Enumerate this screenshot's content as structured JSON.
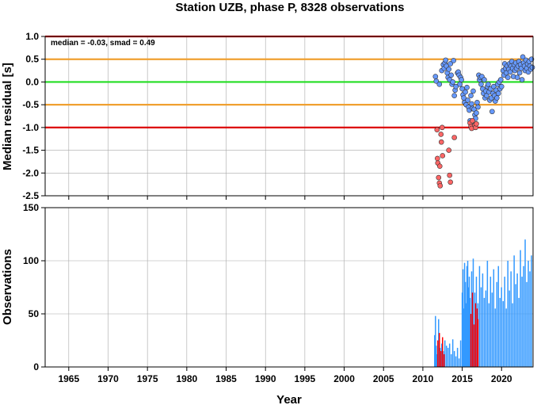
{
  "chart_data": [
    {
      "type": "scatter",
      "title": "Station UZB, phase P, 8328 observations",
      "xlabel": "",
      "ylabel": "Median residual [s]",
      "xlim": [
        1962,
        2024
      ],
      "ylim": [
        -2.5,
        1.0
      ],
      "yticks": [
        "1.0",
        "0.5",
        "0.0",
        "-0.5",
        "-1.0",
        "-1.5",
        "-2.0",
        "-2.5"
      ],
      "grid": true,
      "annotation": "median = -0.03, smad = 0.49",
      "reference_lines": [
        {
          "y": 1.0,
          "color": "#dd0000"
        },
        {
          "y": 0.5,
          "color": "#f0a030"
        },
        {
          "y": 0.0,
          "color": "#22dd22"
        },
        {
          "y": -0.5,
          "color": "#f0a030"
        },
        {
          "y": -1.0,
          "color": "#dd0000"
        }
      ],
      "series": [
        {
          "color": "#6699ff",
          "points": [
            [
              2011.6,
              0.12
            ],
            [
              2011.7,
              0.02
            ],
            [
              2012.1,
              -0.05
            ],
            [
              2012.4,
              0.25
            ],
            [
              2012.6,
              0.38
            ],
            [
              2012.7,
              0.3
            ],
            [
              2012.8,
              0.42
            ],
            [
              2012.9,
              0.48
            ],
            [
              2013.0,
              0.35
            ],
            [
              2013.1,
              0.2
            ],
            [
              2013.2,
              0.1
            ],
            [
              2013.3,
              0.28
            ],
            [
              2013.4,
              0.05
            ],
            [
              2013.5,
              0.4
            ],
            [
              2013.6,
              0.15
            ],
            [
              2013.7,
              -0.05
            ],
            [
              2013.8,
              0.0
            ],
            [
              2013.9,
              0.47
            ],
            [
              2014.0,
              -0.3
            ],
            [
              2014.1,
              -0.18
            ],
            [
              2014.2,
              -0.1
            ],
            [
              2014.4,
              0.2
            ],
            [
              2014.5,
              0.22
            ],
            [
              2014.6,
              0.15
            ],
            [
              2014.7,
              -0.05
            ],
            [
              2014.8,
              0.1
            ],
            [
              2014.9,
              0.05
            ],
            [
              2015.0,
              -0.15
            ],
            [
              2015.1,
              -0.28
            ],
            [
              2015.2,
              -0.35
            ],
            [
              2015.3,
              -0.45
            ],
            [
              2015.4,
              -0.22
            ],
            [
              2015.5,
              -0.5
            ],
            [
              2015.6,
              -0.12
            ],
            [
              2015.7,
              -0.4
            ],
            [
              2015.8,
              -0.55
            ],
            [
              2015.9,
              -0.62
            ],
            [
              2016.0,
              -0.85
            ],
            [
              2016.1,
              -0.3
            ],
            [
              2016.2,
              -0.48
            ],
            [
              2016.3,
              -0.58
            ],
            [
              2016.4,
              -0.2
            ],
            [
              2016.5,
              -0.6
            ],
            [
              2016.6,
              -0.72
            ],
            [
              2016.7,
              -0.8
            ],
            [
              2016.8,
              -0.68
            ],
            [
              2016.9,
              -0.45
            ],
            [
              2017.0,
              -0.55
            ],
            [
              2017.1,
              0.15
            ],
            [
              2017.2,
              0.05
            ],
            [
              2017.3,
              0.1
            ],
            [
              2017.4,
              -0.05
            ],
            [
              2017.5,
              0.12
            ],
            [
              2017.6,
              -0.15
            ],
            [
              2017.7,
              -0.25
            ],
            [
              2017.8,
              0.05
            ],
            [
              2017.9,
              -0.35
            ],
            [
              2018.0,
              -0.2
            ],
            [
              2018.1,
              -0.3
            ],
            [
              2018.2,
              -0.1
            ],
            [
              2018.3,
              -0.05
            ],
            [
              2018.4,
              -0.22
            ],
            [
              2018.5,
              -0.4
            ],
            [
              2018.6,
              -0.15
            ],
            [
              2018.7,
              -0.35
            ],
            [
              2018.8,
              -0.65
            ],
            [
              2018.9,
              -0.25
            ],
            [
              2019.0,
              -0.1
            ],
            [
              2019.1,
              -0.3
            ],
            [
              2019.2,
              -0.42
            ],
            [
              2019.3,
              -0.18
            ],
            [
              2019.4,
              -0.35
            ],
            [
              2019.5,
              -0.05
            ],
            [
              2019.6,
              -0.25
            ],
            [
              2019.7,
              0.0
            ],
            [
              2019.8,
              -0.15
            ],
            [
              2019.9,
              0.05
            ],
            [
              2020.0,
              -0.1
            ],
            [
              2020.2,
              0.25
            ],
            [
              2020.3,
              0.15
            ],
            [
              2020.4,
              0.4
            ],
            [
              2020.5,
              0.3
            ],
            [
              2020.6,
              0.2
            ],
            [
              2020.7,
              0.35
            ],
            [
              2020.8,
              0.1
            ],
            [
              2020.9,
              0.28
            ],
            [
              2021.0,
              0.4
            ],
            [
              2021.1,
              0.22
            ],
            [
              2021.2,
              0.35
            ],
            [
              2021.3,
              0.45
            ],
            [
              2021.4,
              0.3
            ],
            [
              2021.5,
              0.12
            ],
            [
              2021.6,
              0.38
            ],
            [
              2021.7,
              0.25
            ],
            [
              2021.8,
              0.42
            ],
            [
              2021.9,
              0.3
            ],
            [
              2022.0,
              0.1
            ],
            [
              2022.1,
              0.35
            ],
            [
              2022.2,
              0.45
            ],
            [
              2022.3,
              0.2
            ],
            [
              2022.4,
              0.38
            ],
            [
              2022.5,
              0.3
            ],
            [
              2022.6,
              0.05
            ],
            [
              2022.7,
              0.55
            ],
            [
              2022.8,
              0.42
            ],
            [
              2022.9,
              0.35
            ],
            [
              2023.0,
              0.25
            ],
            [
              2023.1,
              0.48
            ],
            [
              2023.2,
              0.3
            ],
            [
              2023.3,
              0.4
            ],
            [
              2023.4,
              0.22
            ],
            [
              2023.5,
              0.45
            ],
            [
              2023.6,
              0.35
            ],
            [
              2023.7,
              0.28
            ],
            [
              2023.8,
              0.5
            ],
            [
              2023.9,
              0.32
            ]
          ]
        },
        {
          "color": "#ff6666",
          "points": [
            [
              2011.8,
              -1.05
            ],
            [
              2011.85,
              -1.68
            ],
            [
              2011.9,
              -1.78
            ],
            [
              2012.0,
              -2.1
            ],
            [
              2012.1,
              -2.22
            ],
            [
              2012.15,
              -1.85
            ],
            [
              2012.2,
              -2.28
            ],
            [
              2012.3,
              -1.15
            ],
            [
              2012.35,
              -1.32
            ],
            [
              2012.45,
              -1.0
            ],
            [
              2012.5,
              -1.62
            ],
            [
              2013.3,
              -1.5
            ],
            [
              2013.4,
              -2.05
            ],
            [
              2013.5,
              -2.2
            ],
            [
              2014.0,
              -1.22
            ],
            [
              2016.0,
              -0.9
            ],
            [
              2016.1,
              -0.98
            ],
            [
              2016.2,
              -1.02
            ],
            [
              2016.3,
              -0.85
            ],
            [
              2016.6,
              -0.95
            ],
            [
              2016.7,
              -1.0
            ],
            [
              2016.8,
              -0.92
            ]
          ]
        }
      ]
    },
    {
      "type": "bar",
      "title": "",
      "xlabel": "Year",
      "ylabel": "Observations",
      "xlim": [
        1962,
        2024
      ],
      "ylim": [
        0,
        150
      ],
      "yticks": [
        "150",
        "100",
        "50",
        "0"
      ],
      "xticks": [
        "1965",
        "1970",
        "1975",
        "1980",
        "1985",
        "1990",
        "1995",
        "2000",
        "2005",
        "2010",
        "2015",
        "2020"
      ],
      "grid": true,
      "series": [
        {
          "color": "#3399ff",
          "points": [
            [
              2011.5,
              30
            ],
            [
              2011.6,
              48
            ],
            [
              2011.7,
              20
            ],
            [
              2011.8,
              12
            ],
            [
              2012.0,
              45
            ],
            [
              2012.2,
              18
            ],
            [
              2012.4,
              22
            ],
            [
              2012.6,
              15
            ],
            [
              2012.8,
              25
            ],
            [
              2013.0,
              20
            ],
            [
              2013.2,
              18
            ],
            [
              2013.4,
              22
            ],
            [
              2013.6,
              12
            ],
            [
              2013.8,
              26
            ],
            [
              2014.0,
              15
            ],
            [
              2014.2,
              10
            ],
            [
              2014.4,
              18
            ],
            [
              2014.6,
              8
            ],
            [
              2014.8,
              25
            ],
            [
              2015.0,
              70
            ],
            [
              2015.1,
              92
            ],
            [
              2015.2,
              55
            ],
            [
              2015.3,
              98
            ],
            [
              2015.4,
              80
            ],
            [
              2015.5,
              60
            ],
            [
              2015.6,
              95
            ],
            [
              2015.7,
              100
            ],
            [
              2015.8,
              75
            ],
            [
              2015.9,
              85
            ],
            [
              2016.0,
              65
            ],
            [
              2016.2,
              90
            ],
            [
              2016.4,
              102
            ],
            [
              2016.6,
              70
            ],
            [
              2016.8,
              85
            ],
            [
              2017.0,
              60
            ],
            [
              2017.2,
              95
            ],
            [
              2017.4,
              75
            ],
            [
              2017.6,
              88
            ],
            [
              2017.8,
              65
            ],
            [
              2018.0,
              72
            ],
            [
              2018.2,
              100
            ],
            [
              2018.4,
              60
            ],
            [
              2018.6,
              85
            ],
            [
              2018.8,
              70
            ],
            [
              2019.0,
              92
            ],
            [
              2019.2,
              55
            ],
            [
              2019.4,
              80
            ],
            [
              2019.6,
              95
            ],
            [
              2019.8,
              65
            ],
            [
              2020.0,
              75
            ],
            [
              2020.2,
              62
            ],
            [
              2020.4,
              85
            ],
            [
              2020.6,
              55
            ],
            [
              2020.8,
              100
            ],
            [
              2021.0,
              72
            ],
            [
              2021.2,
              90
            ],
            [
              2021.4,
              60
            ],
            [
              2021.6,
              105
            ],
            [
              2021.8,
              78
            ],
            [
              2022.0,
              88
            ],
            [
              2022.2,
              65
            ],
            [
              2022.4,
              110
            ],
            [
              2022.6,
              85
            ],
            [
              2022.8,
              95
            ],
            [
              2023.0,
              120
            ],
            [
              2023.2,
              80
            ],
            [
              2023.4,
              100
            ],
            [
              2023.6,
              90
            ],
            [
              2023.8,
              105
            ]
          ]
        },
        {
          "color": "#ff0000",
          "points": [
            [
              2011.9,
              25
            ],
            [
              2012.1,
              32
            ],
            [
              2012.3,
              15
            ],
            [
              2012.5,
              28
            ],
            [
              2012.7,
              12
            ],
            [
              2016.1,
              50
            ],
            [
              2016.3,
              70
            ],
            [
              2016.5,
              40
            ],
            [
              2016.7,
              60
            ],
            [
              2016.9,
              55
            ],
            [
              2017.0,
              45
            ]
          ]
        }
      ]
    }
  ]
}
